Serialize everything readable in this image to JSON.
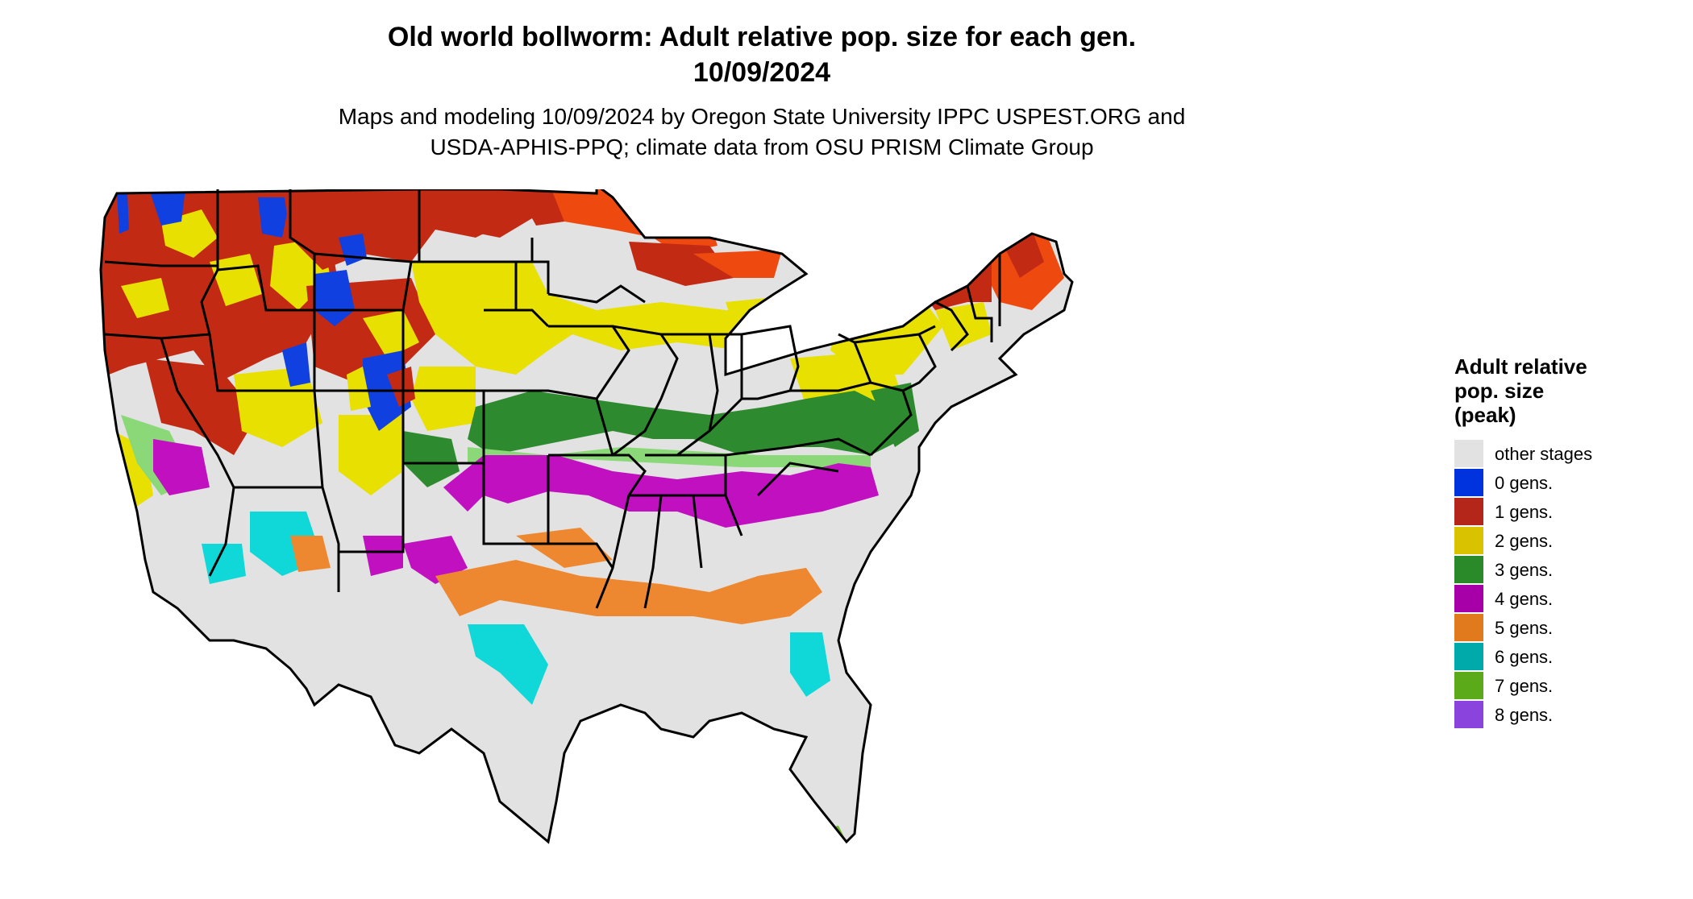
{
  "title_line1": "Old world bollworm: Adult relative pop. size for each gen.",
  "title_line2": "10/09/2024",
  "subtitle_line1": "Maps and modeling 10/09/2024 by Oregon State University IPPC USPEST.ORG and",
  "subtitle_line2": "USDA-APHIS-PPQ; climate data from OSU PRISM Climate Group",
  "legend": {
    "title_line1": "Adult relative",
    "title_line2": "pop. size",
    "title_line3": "(peak)",
    "items": [
      {
        "label": "other stages",
        "color": "#e2e2e2"
      },
      {
        "label": "0 gens.",
        "color": "#0033dd"
      },
      {
        "label": "1 gens.",
        "color": "#b5261a"
      },
      {
        "label": "2 gens.",
        "color": "#d9c200"
      },
      {
        "label": "3 gens.",
        "color": "#2a8a2a"
      },
      {
        "label": "4 gens.",
        "color": "#a800a8"
      },
      {
        "label": "5 gens.",
        "color": "#e07a1c"
      },
      {
        "label": "6 gens.",
        "color": "#00aaaa"
      },
      {
        "label": "7 gens.",
        "color": "#5aaa1a"
      },
      {
        "label": "8 gens.",
        "color": "#8a44dd"
      }
    ]
  },
  "map_colors": {
    "background": "#e2e2e2",
    "red": "#c32a14",
    "orange_red": "#ee4a10",
    "yellow": "#e8e000",
    "green": "#2e8a2e",
    "light_green": "#8ad878",
    "magenta": "#c010c0",
    "orange": "#ee8830",
    "cyan": "#10d8d8",
    "blue": "#1040e0",
    "lime": "#6ab82a",
    "border": "#000000"
  }
}
